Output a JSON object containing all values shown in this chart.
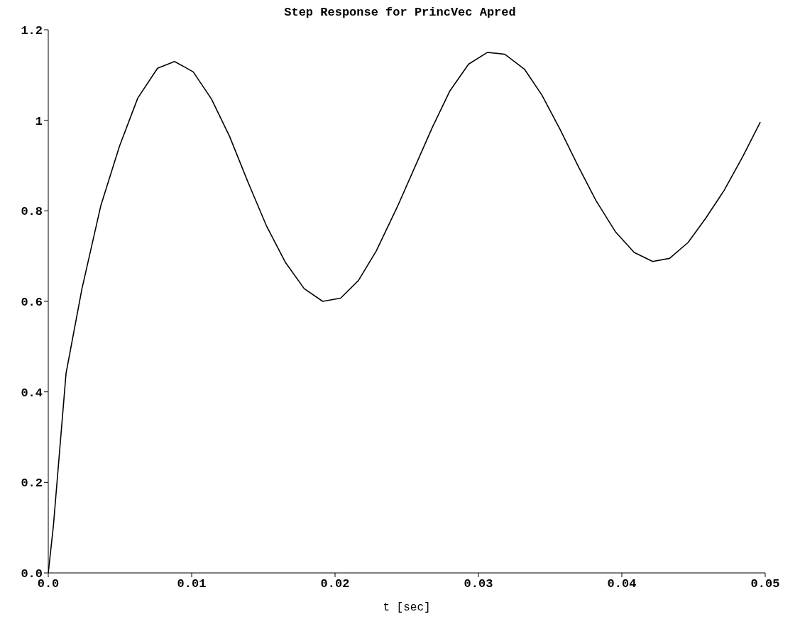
{
  "chart_data": {
    "type": "line",
    "title": "Step Response for PrincVec Apred",
    "xlabel": "t [sec]",
    "x": [
      0,
      0.00036,
      0.00124,
      0.00235,
      0.00367,
      0.00497,
      0.00624,
      0.00762,
      0.00881,
      0.01011,
      0.01138,
      0.01265,
      0.01392,
      0.0152,
      0.01652,
      0.01785,
      0.01914,
      0.02039,
      0.02163,
      0.02287,
      0.02436,
      0.02678,
      0.02801,
      0.02931,
      0.03063,
      0.03183,
      0.03321,
      0.03442,
      0.03569,
      0.03695,
      0.03819,
      0.03957,
      0.04086,
      0.04215,
      0.04333,
      0.04462,
      0.04586,
      0.04713,
      0.04842,
      0.04966
    ],
    "series": [
      {
        "color": "#000000",
        "values": [
          0,
          0.105,
          0.441,
          0.628,
          0.812,
          0.943,
          1.049,
          1.115,
          1.13,
          1.107,
          1.047,
          0.964,
          0.864,
          0.768,
          0.687,
          0.628,
          0.6,
          0.607,
          0.646,
          0.711,
          0.81,
          0.984,
          1.065,
          1.124,
          1.15,
          1.146,
          1.113,
          1.056,
          0.98,
          0.899,
          0.823,
          0.753,
          0.708,
          0.688,
          0.695,
          0.73,
          0.784,
          0.845,
          0.919,
          0.996
        ]
      }
    ],
    "xlim": [
      0,
      0.05
    ],
    "ylim": [
      0,
      1.2
    ],
    "xticks": [
      {
        "value": 0,
        "label": "0.0"
      },
      0.01,
      0.02,
      0.03,
      0.04,
      0.05
    ],
    "yticks": [
      {
        "value": 0,
        "label": "0.0"
      },
      0.2,
      0.4,
      0.6,
      0.8,
      1,
      1.2
    ],
    "marker": "none",
    "line_style": "solid"
  }
}
